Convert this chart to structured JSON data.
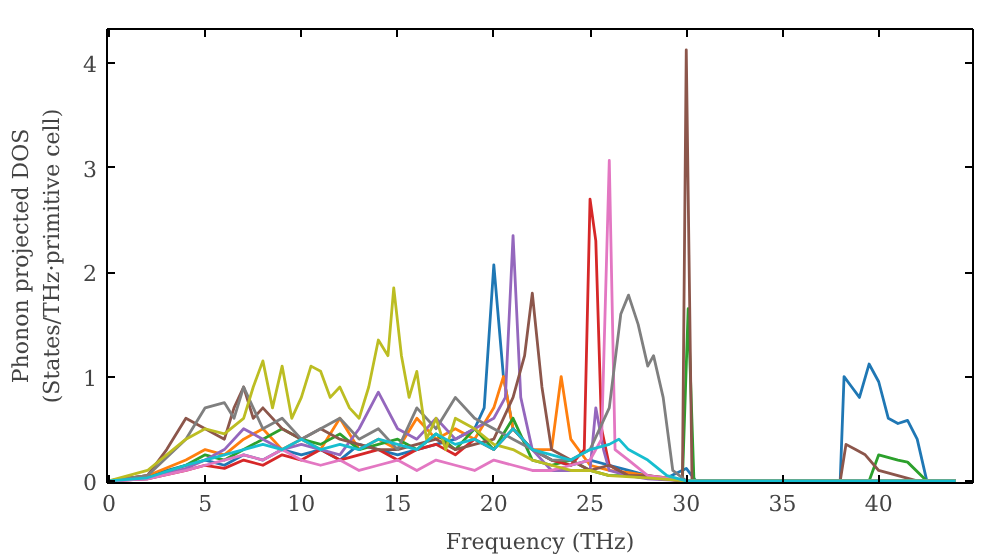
{
  "chart_data": {
    "type": "line",
    "xlabel": "Frequency (THz)",
    "ylabel": "Phonon projected DOS\n(States/THz·primitive cell)",
    "xlim": [
      -0.1,
      44.9
    ],
    "ylim": [
      -0.02,
      4.33
    ],
    "xticks": [
      0,
      5,
      10,
      15,
      20,
      25,
      30,
      35,
      40
    ],
    "yticks": [
      0,
      1,
      2,
      3,
      4
    ],
    "grid": false,
    "line_style": "solid",
    "series": [
      {
        "color": "#1f77b4",
        "x": [
          0,
          2,
          4,
          5,
          6,
          7,
          8,
          9,
          10,
          11,
          12,
          13,
          14,
          15,
          16,
          17,
          18,
          19,
          19.5,
          20,
          20.5,
          21,
          22,
          23,
          24,
          25,
          26,
          27,
          28,
          29,
          30,
          30.5,
          31,
          38,
          38.2,
          38.6,
          39,
          39.5,
          40,
          40.5,
          41,
          41.5,
          42,
          42.5,
          44
        ],
        "values": [
          0,
          0.05,
          0.15,
          0.2,
          0.15,
          0.25,
          0.2,
          0.3,
          0.25,
          0.3,
          0.2,
          0.35,
          0.3,
          0.25,
          0.3,
          0.35,
          0.4,
          0.5,
          0.7,
          2.07,
          1.0,
          0.5,
          0.3,
          0.2,
          0.15,
          0.2,
          0.15,
          0.1,
          0.05,
          0.03,
          0.12,
          0,
          0,
          0,
          1.0,
          0.9,
          0.8,
          1.12,
          0.95,
          0.6,
          0.55,
          0.58,
          0.4,
          0,
          0
        ]
      },
      {
        "color": "#ff7f0e",
        "x": [
          0,
          2,
          4,
          5,
          6,
          7,
          8,
          9,
          10,
          11,
          12,
          13,
          14,
          15,
          16,
          17,
          18,
          19,
          20,
          20.5,
          21,
          22,
          23,
          23.5,
          24,
          25,
          26,
          27,
          28,
          29
        ],
        "values": [
          0,
          0.05,
          0.2,
          0.3,
          0.25,
          0.4,
          0.5,
          0.3,
          0.4,
          0.3,
          0.6,
          0.3,
          0.4,
          0.3,
          0.6,
          0.4,
          0.5,
          0.4,
          0.7,
          1.0,
          0.5,
          0.3,
          0.3,
          1.0,
          0.4,
          0.15,
          0.1,
          0.08,
          0.05,
          0.03
        ]
      },
      {
        "color": "#2ca02c",
        "x": [
          0,
          2,
          4,
          5,
          6,
          7,
          8,
          9,
          10,
          11,
          12,
          13,
          14,
          15,
          16,
          17,
          18,
          19,
          20,
          21,
          22,
          23,
          24,
          25,
          26,
          27,
          28,
          29,
          29.8,
          30.1,
          30.4,
          31,
          38,
          39.5,
          40,
          41,
          41.5,
          42.5,
          44
        ],
        "values": [
          0,
          0.03,
          0.15,
          0.25,
          0.2,
          0.3,
          0.4,
          0.5,
          0.4,
          0.35,
          0.45,
          0.3,
          0.35,
          0.4,
          0.3,
          0.45,
          0.3,
          0.5,
          0.3,
          0.6,
          0.2,
          0.15,
          0.2,
          0.1,
          0.05,
          0.05,
          0.03,
          0.02,
          0,
          1.65,
          0,
          0,
          0,
          0,
          0.25,
          0.2,
          0.18,
          0,
          0
        ]
      },
      {
        "color": "#d62728",
        "x": [
          0,
          2,
          4,
          5,
          6,
          7,
          8,
          9,
          10,
          11,
          12,
          13,
          14,
          15,
          16,
          17,
          18,
          19,
          20,
          21,
          22,
          23,
          24,
          24.7,
          25,
          25.3,
          25.6,
          26,
          27,
          28,
          30,
          44
        ],
        "values": [
          0,
          0.02,
          0.1,
          0.15,
          0.12,
          0.2,
          0.15,
          0.25,
          0.2,
          0.3,
          0.2,
          0.25,
          0.3,
          0.2,
          0.3,
          0.35,
          0.25,
          0.4,
          0.3,
          0.5,
          0.3,
          0.2,
          0.15,
          0.3,
          2.7,
          2.3,
          0.5,
          0.15,
          0.05,
          0.03,
          0,
          0
        ]
      },
      {
        "color": "#9467bd",
        "x": [
          0,
          2,
          4,
          5,
          6,
          7,
          8,
          9,
          10,
          11,
          12,
          13,
          14,
          15,
          16,
          17,
          18,
          19,
          20,
          20.6,
          21,
          21.4,
          22,
          23,
          24,
          25,
          25.3,
          25.7,
          26,
          27,
          28,
          30,
          44
        ],
        "values": [
          0,
          0.02,
          0.12,
          0.2,
          0.3,
          0.5,
          0.4,
          0.3,
          0.35,
          0.3,
          0.25,
          0.5,
          0.85,
          0.5,
          0.4,
          0.6,
          0.4,
          0.5,
          0.6,
          0.8,
          2.35,
          0.8,
          0.3,
          0.1,
          0.1,
          0.1,
          0.7,
          0.3,
          0.1,
          0.05,
          0.02,
          0,
          0
        ]
      },
      {
        "color": "#8c564b",
        "x": [
          0,
          2,
          3,
          4,
          5,
          6,
          6.5,
          7,
          7.5,
          8,
          9,
          10,
          11,
          12,
          13,
          14,
          15,
          16,
          17,
          18,
          19,
          20,
          21,
          21.6,
          22,
          22.5,
          23,
          24,
          25,
          26,
          27,
          28,
          29,
          29.8,
          30,
          30.3,
          31,
          38,
          38.3,
          38.8,
          39.3,
          40,
          41,
          42,
          44
        ],
        "values": [
          0,
          0.05,
          0.3,
          0.6,
          0.5,
          0.4,
          0.7,
          0.9,
          0.6,
          0.7,
          0.5,
          0.4,
          0.5,
          0.4,
          0.35,
          0.3,
          0.3,
          0.35,
          0.4,
          0.3,
          0.35,
          0.4,
          0.8,
          1.2,
          1.8,
          0.9,
          0.3,
          0.2,
          0.1,
          0.15,
          0.05,
          0.05,
          0.02,
          0,
          4.13,
          0,
          0,
          0,
          0.35,
          0.3,
          0.25,
          0.1,
          0.05,
          0,
          0
        ]
      },
      {
        "color": "#e377c2",
        "x": [
          0,
          2,
          4,
          5,
          6,
          7,
          8,
          9,
          10,
          11,
          12,
          13,
          14,
          15,
          16,
          17,
          18,
          19,
          20,
          21,
          22,
          23,
          24,
          25,
          25.6,
          26,
          26.3,
          27,
          28,
          30,
          44
        ],
        "values": [
          0,
          0.02,
          0.1,
          0.15,
          0.2,
          0.25,
          0.2,
          0.3,
          0.2,
          0.15,
          0.2,
          0.1,
          0.15,
          0.2,
          0.1,
          0.2,
          0.15,
          0.1,
          0.2,
          0.15,
          0.1,
          0.1,
          0.15,
          0.2,
          0.4,
          3.07,
          0.3,
          0.2,
          0.05,
          0,
          0
        ]
      },
      {
        "color": "#7f7f7f",
        "x": [
          0,
          2,
          4,
          5,
          6,
          6.5,
          7,
          7.5,
          8,
          9,
          10,
          11,
          12,
          13,
          14,
          15,
          16,
          17,
          18,
          19,
          20,
          21,
          22,
          23,
          24,
          25,
          26,
          26.6,
          27,
          27.5,
          28,
          28.3,
          28.8,
          29.3,
          30,
          44
        ],
        "values": [
          0,
          0.05,
          0.4,
          0.7,
          0.75,
          0.6,
          0.9,
          0.7,
          0.5,
          0.6,
          0.4,
          0.5,
          0.6,
          0.4,
          0.5,
          0.3,
          0.7,
          0.5,
          0.8,
          0.6,
          0.5,
          0.4,
          0.3,
          0.2,
          0.2,
          0.3,
          0.7,
          1.6,
          1.78,
          1.5,
          1.1,
          1.2,
          0.8,
          0.1,
          0,
          0
        ]
      },
      {
        "color": "#bcbd22",
        "x": [
          0,
          2,
          3,
          4,
          5,
          6,
          7,
          7.5,
          8,
          8.5,
          9,
          9.5,
          10,
          10.5,
          11,
          11.5,
          12,
          12.5,
          13,
          13.5,
          14,
          14.5,
          14.8,
          15.2,
          15.6,
          16,
          16.5,
          17,
          17.5,
          18,
          19,
          20,
          21,
          22,
          23,
          24,
          25,
          26,
          28,
          30,
          44
        ],
        "values": [
          0,
          0.1,
          0.25,
          0.4,
          0.5,
          0.45,
          0.6,
          0.9,
          1.15,
          0.7,
          1.1,
          0.6,
          0.8,
          1.1,
          1.05,
          0.8,
          0.9,
          0.7,
          0.6,
          0.9,
          1.35,
          1.2,
          1.85,
          1.2,
          0.8,
          1.05,
          0.4,
          0.6,
          0.3,
          0.6,
          0.5,
          0.35,
          0.3,
          0.2,
          0.15,
          0.1,
          0.1,
          0.05,
          0.03,
          0,
          0
        ]
      },
      {
        "color": "#17becf",
        "x": [
          0,
          2,
          4,
          5,
          6,
          7,
          8,
          9,
          10,
          11,
          12,
          13,
          14,
          15,
          16,
          17,
          18,
          19,
          20,
          21,
          22,
          23,
          24,
          25,
          26,
          26.5,
          27,
          28,
          29,
          30,
          44
        ],
        "values": [
          0,
          0.03,
          0.15,
          0.2,
          0.25,
          0.3,
          0.35,
          0.3,
          0.4,
          0.3,
          0.35,
          0.3,
          0.4,
          0.35,
          0.3,
          0.45,
          0.35,
          0.4,
          0.3,
          0.5,
          0.3,
          0.25,
          0.2,
          0.3,
          0.35,
          0.4,
          0.3,
          0.2,
          0.05,
          0,
          0
        ]
      }
    ]
  }
}
